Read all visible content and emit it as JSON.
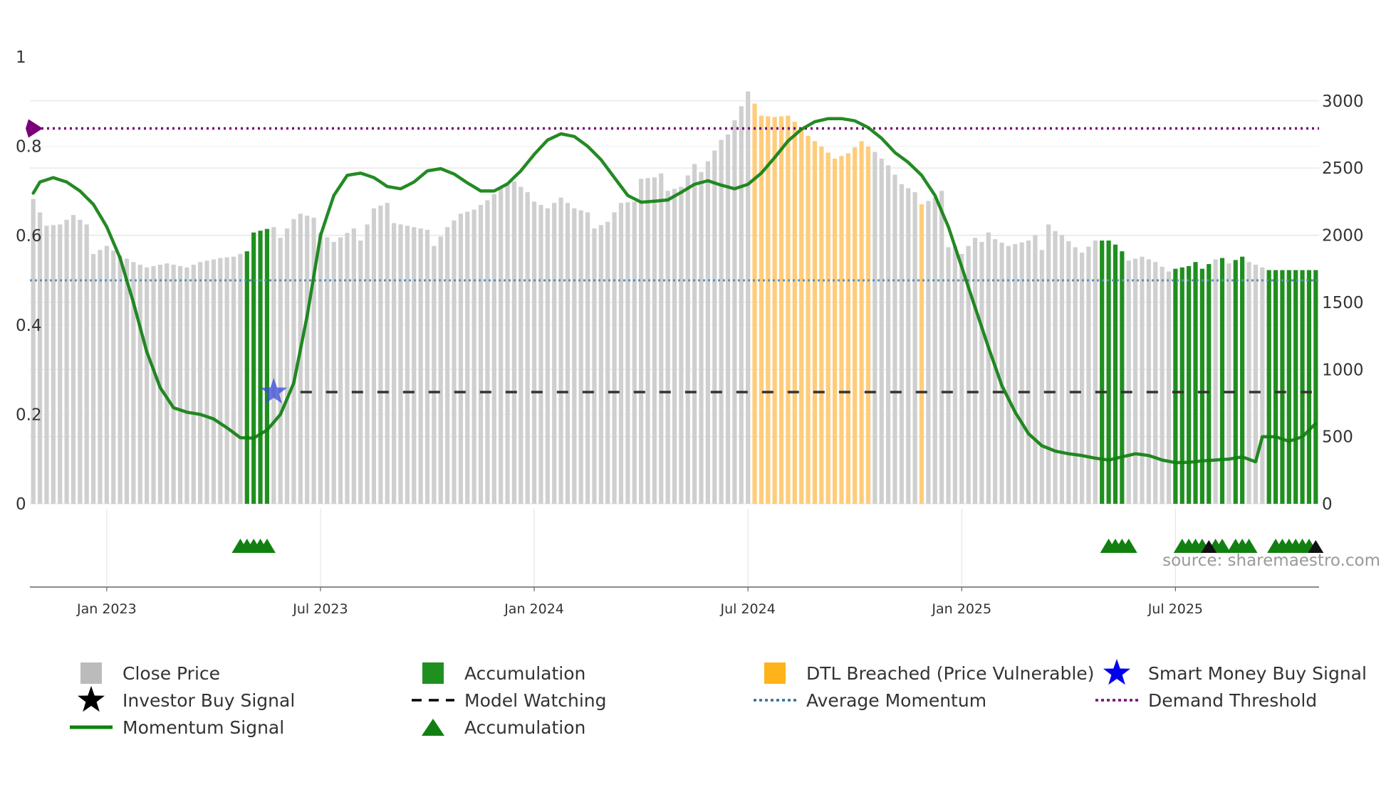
{
  "chart_data": {
    "type": "bar",
    "source": "source: sharemaestro.com",
    "left_axis": {
      "ticks": [
        0,
        0.2,
        0.4,
        0.6,
        0.8,
        1
      ],
      "ylim": [
        0,
        1
      ]
    },
    "right_axis": {
      "ticks": [
        0,
        500,
        1000,
        1500,
        2000,
        2500,
        3000
      ],
      "ylim": [
        0,
        3200
      ]
    },
    "x_axis": {
      "tick_labels": [
        "Jan 2023",
        "Jul 2023",
        "Jan 2024",
        "Jul 2024",
        "Jan 2025",
        "Jul 2025"
      ],
      "tick_bar_index": [
        11,
        43,
        75,
        107,
        139,
        171
      ]
    },
    "bar_count": 193,
    "price_anchors": [
      [
        0,
        2270
      ],
      [
        2,
        2070
      ],
      [
        4,
        2080
      ],
      [
        6,
        2150
      ],
      [
        8,
        2080
      ],
      [
        9,
        1860
      ],
      [
        11,
        1920
      ],
      [
        13,
        1850
      ],
      [
        15,
        1800
      ],
      [
        17,
        1760
      ],
      [
        20,
        1790
      ],
      [
        23,
        1760
      ],
      [
        25,
        1800
      ],
      [
        28,
        1830
      ],
      [
        30,
        1840
      ],
      [
        32,
        1880
      ],
      [
        33,
        2020
      ],
      [
        36,
        2060
      ],
      [
        37,
        1980
      ],
      [
        39,
        2120
      ],
      [
        40,
        2160
      ],
      [
        42,
        2130
      ],
      [
        43,
        2020
      ],
      [
        45,
        1950
      ],
      [
        48,
        2050
      ],
      [
        49,
        1960
      ],
      [
        51,
        2200
      ],
      [
        53,
        2240
      ],
      [
        54,
        2090
      ],
      [
        57,
        2060
      ],
      [
        59,
        2040
      ],
      [
        60,
        1920
      ],
      [
        62,
        2060
      ],
      [
        64,
        2160
      ],
      [
        66,
        2190
      ],
      [
        68,
        2260
      ],
      [
        70,
        2350
      ],
      [
        72,
        2400
      ],
      [
        74,
        2320
      ],
      [
        75,
        2250
      ],
      [
        77,
        2200
      ],
      [
        79,
        2280
      ],
      [
        81,
        2200
      ],
      [
        83,
        2170
      ],
      [
        84,
        2050
      ],
      [
        86,
        2100
      ],
      [
        88,
        2240
      ],
      [
        90,
        2250
      ],
      [
        91,
        2420
      ],
      [
        93,
        2430
      ],
      [
        94,
        2460
      ],
      [
        95,
        2330
      ],
      [
        97,
        2360
      ],
      [
        99,
        2530
      ],
      [
        100,
        2470
      ],
      [
        102,
        2630
      ],
      [
        103,
        2710
      ],
      [
        104,
        2750
      ],
      [
        106,
        2960
      ],
      [
        107,
        3070
      ],
      [
        108,
        2980
      ],
      [
        109,
        2890
      ],
      [
        111,
        2880
      ],
      [
        113,
        2890
      ],
      [
        115,
        2800
      ],
      [
        116,
        2740
      ],
      [
        118,
        2660
      ],
      [
        120,
        2570
      ],
      [
        122,
        2610
      ],
      [
        124,
        2700
      ],
      [
        126,
        2620
      ],
      [
        128,
        2520
      ],
      [
        130,
        2380
      ],
      [
        132,
        2320
      ],
      [
        133,
        2230
      ],
      [
        135,
        2280
      ],
      [
        136,
        2330
      ],
      [
        137,
        1910
      ],
      [
        138,
        1920
      ],
      [
        139,
        1860
      ],
      [
        141,
        1980
      ],
      [
        142,
        1950
      ],
      [
        143,
        2020
      ],
      [
        144,
        1970
      ],
      [
        146,
        1920
      ],
      [
        149,
        1960
      ],
      [
        150,
        2000
      ],
      [
        151,
        1890
      ],
      [
        152,
        2080
      ],
      [
        153,
        2030
      ],
      [
        154,
        2000
      ],
      [
        156,
        1910
      ],
      [
        157,
        1870
      ],
      [
        159,
        1960
      ],
      [
        161,
        1960
      ],
      [
        162,
        1930
      ],
      [
        163,
        1880
      ],
      [
        164,
        1810
      ],
      [
        166,
        1840
      ],
      [
        168,
        1800
      ],
      [
        170,
        1730
      ],
      [
        171,
        1750
      ],
      [
        173,
        1770
      ],
      [
        174,
        1800
      ],
      [
        175,
        1750
      ],
      [
        177,
        1820
      ],
      [
        178,
        1830
      ],
      [
        179,
        1790
      ],
      [
        181,
        1840
      ],
      [
        182,
        1800
      ],
      [
        185,
        1740
      ]
    ],
    "bar_groups": [
      {
        "name": "Accumulation",
        "color": "#1f8f1f",
        "ranges": [
          [
            32,
            36
          ],
          [
            160,
            164
          ],
          [
            171,
            177
          ],
          [
            178,
            179
          ],
          [
            180,
            182
          ],
          [
            185,
            193
          ]
        ]
      },
      {
        "name": "DTL Breached (Price Vulnerable)",
        "color": "#ffcc7a",
        "ranges": [
          [
            108,
            126
          ],
          [
            133,
            134
          ]
        ]
      }
    ],
    "momentum_anchors": [
      [
        0,
        0.695
      ],
      [
        1,
        0.72
      ],
      [
        3,
        0.73
      ],
      [
        5,
        0.72
      ],
      [
        7,
        0.7
      ],
      [
        9,
        0.67
      ],
      [
        11,
        0.62
      ],
      [
        13,
        0.55
      ],
      [
        15,
        0.45
      ],
      [
        17,
        0.34
      ],
      [
        19,
        0.26
      ],
      [
        21,
        0.215
      ],
      [
        23,
        0.205
      ],
      [
        25,
        0.2
      ],
      [
        27,
        0.19
      ],
      [
        29,
        0.17
      ],
      [
        31,
        0.148
      ],
      [
        33,
        0.147
      ],
      [
        35,
        0.165
      ],
      [
        37,
        0.2
      ],
      [
        39,
        0.27
      ],
      [
        41,
        0.42
      ],
      [
        43,
        0.6
      ],
      [
        45,
        0.69
      ],
      [
        47,
        0.735
      ],
      [
        49,
        0.74
      ],
      [
        51,
        0.73
      ],
      [
        53,
        0.71
      ],
      [
        55,
        0.705
      ],
      [
        57,
        0.72
      ],
      [
        59,
        0.745
      ],
      [
        61,
        0.75
      ],
      [
        63,
        0.738
      ],
      [
        65,
        0.718
      ],
      [
        67,
        0.7
      ],
      [
        69,
        0.7
      ],
      [
        71,
        0.716
      ],
      [
        73,
        0.745
      ],
      [
        75,
        0.782
      ],
      [
        77,
        0.814
      ],
      [
        79,
        0.828
      ],
      [
        81,
        0.822
      ],
      [
        83,
        0.8
      ],
      [
        85,
        0.77
      ],
      [
        87,
        0.73
      ],
      [
        89,
        0.69
      ],
      [
        91,
        0.675
      ],
      [
        93,
        0.677
      ],
      [
        95,
        0.68
      ],
      [
        97,
        0.697
      ],
      [
        99,
        0.715
      ],
      [
        101,
        0.723
      ],
      [
        103,
        0.713
      ],
      [
        105,
        0.705
      ],
      [
        107,
        0.715
      ],
      [
        109,
        0.74
      ],
      [
        111,
        0.775
      ],
      [
        113,
        0.812
      ],
      [
        115,
        0.838
      ],
      [
        117,
        0.855
      ],
      [
        119,
        0.862
      ],
      [
        121,
        0.862
      ],
      [
        123,
        0.857
      ],
      [
        125,
        0.842
      ],
      [
        127,
        0.818
      ],
      [
        129,
        0.786
      ],
      [
        131,
        0.764
      ],
      [
        133,
        0.735
      ],
      [
        135,
        0.69
      ],
      [
        137,
        0.62
      ],
      [
        139,
        0.53
      ],
      [
        141,
        0.44
      ],
      [
        143,
        0.35
      ],
      [
        145,
        0.265
      ],
      [
        147,
        0.205
      ],
      [
        149,
        0.157
      ],
      [
        151,
        0.13
      ],
      [
        153,
        0.118
      ],
      [
        155,
        0.112
      ],
      [
        157,
        0.108
      ],
      [
        159,
        0.102
      ],
      [
        161,
        0.098
      ],
      [
        163,
        0.105
      ],
      [
        165,
        0.112
      ],
      [
        167,
        0.108
      ],
      [
        169,
        0.098
      ],
      [
        171,
        0.092
      ],
      [
        173,
        0.093
      ],
      [
        175,
        0.096
      ],
      [
        177,
        0.098
      ],
      [
        179,
        0.1
      ],
      [
        181,
        0.105
      ],
      [
        183,
        0.094
      ],
      [
        184,
        0.15
      ],
      [
        186,
        0.15
      ],
      [
        188,
        0.14
      ],
      [
        190,
        0.15
      ],
      [
        192,
        0.18
      ]
    ],
    "average_momentum": 0.5,
    "demand_threshold": 0.84,
    "model_watching_level": 0.25,
    "model_watching_start_bar": 40,
    "smart_money_buy_signal": {
      "bar": 36,
      "value": 0.25
    },
    "accumulation_markers": [
      31,
      32,
      33,
      34,
      35,
      161,
      162,
      163,
      164,
      172,
      173,
      174,
      175,
      177,
      178,
      180,
      181,
      182,
      186,
      187,
      188,
      189,
      190,
      191
    ],
    "investor_buy_markers": [
      176,
      192
    ],
    "legend": [
      {
        "label": "Close Price",
        "kind": "square",
        "color": "#bbbbbb"
      },
      {
        "label": "Accumulation",
        "kind": "square",
        "color": "#1f8f1f"
      },
      {
        "label": "DTL Breached (Price Vulnerable)",
        "kind": "square",
        "color": "#ffb31a"
      },
      {
        "label": "Smart Money Buy Signal",
        "kind": "star",
        "color": "#0000ee"
      },
      {
        "label": "Investor Buy Signal",
        "kind": "star",
        "color": "#000000"
      },
      {
        "label": "Model Watching",
        "kind": "dash",
        "color": "#000000"
      },
      {
        "label": "Average Momentum",
        "kind": "dot",
        "color": "#2f6f9f"
      },
      {
        "label": "Demand Threshold",
        "kind": "dot",
        "color": "#7a007a"
      },
      {
        "label": "Momentum Signal",
        "kind": "line",
        "color": "#118011"
      },
      {
        "label": "Accumulation",
        "kind": "triangle",
        "color": "#118011"
      }
    ],
    "colors": {
      "close": "#cfcfcf",
      "accum": "#1f8f1f",
      "dtl": "#ffcc7a",
      "momentum": "#118011",
      "average": "#5f8fb5",
      "threshold": "#7a007a",
      "watching": "#333333",
      "star_blue": "#3b4bd8",
      "grid": "#e6e6e6",
      "axis": "#666666"
    }
  }
}
